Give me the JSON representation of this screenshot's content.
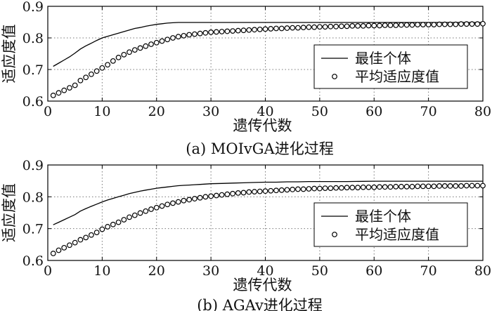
{
  "chart_data": [
    {
      "type": "line",
      "caption": "(a) MOIvGA进化过程",
      "xlabel": "遗传代数",
      "ylabel": "适应度值",
      "xlim": [
        0,
        80
      ],
      "ylim": [
        0.6,
        0.9
      ],
      "xticks": [
        0,
        10,
        20,
        30,
        40,
        50,
        60,
        70,
        80
      ],
      "yticks": [
        "0.6",
        "0.7",
        "0.8",
        "0.9"
      ],
      "grid": "dotted",
      "legend": "lower-right",
      "series": [
        {
          "name": "最佳个体",
          "style": "solid-line",
          "points": [
            [
              1,
              0.71
            ],
            [
              2,
              0.72
            ],
            [
              3,
              0.73
            ],
            [
              4,
              0.74
            ],
            [
              5,
              0.752
            ],
            [
              6,
              0.765
            ],
            [
              7,
              0.775
            ],
            [
              8,
              0.783
            ],
            [
              9,
              0.792
            ],
            [
              10,
              0.8
            ],
            [
              11,
              0.805
            ],
            [
              12,
              0.81
            ],
            [
              13,
              0.815
            ],
            [
              14,
              0.82
            ],
            [
              15,
              0.825
            ],
            [
              16,
              0.83
            ],
            [
              17,
              0.833
            ],
            [
              18,
              0.837
            ],
            [
              19,
              0.84
            ],
            [
              20,
              0.843
            ],
            [
              21,
              0.845
            ],
            [
              22,
              0.847
            ],
            [
              23,
              0.848
            ],
            [
              24,
              0.849
            ],
            [
              26,
              0.849
            ],
            [
              30,
              0.849
            ],
            [
              40,
              0.849
            ],
            [
              50,
              0.849
            ],
            [
              60,
              0.849
            ],
            [
              70,
              0.849
            ],
            [
              80,
              0.849
            ]
          ]
        },
        {
          "name": "平均适应度值",
          "style": "open-circles",
          "points": [
            [
              1,
              0.618
            ],
            [
              2,
              0.626
            ],
            [
              3,
              0.634
            ],
            [
              4,
              0.642
            ],
            [
              5,
              0.65
            ],
            [
              6,
              0.665
            ],
            [
              7,
              0.675
            ],
            [
              8,
              0.685
            ],
            [
              9,
              0.695
            ],
            [
              10,
              0.705
            ],
            [
              11,
              0.715
            ],
            [
              12,
              0.727
            ],
            [
              13,
              0.738
            ],
            [
              14,
              0.747
            ],
            [
              15,
              0.755
            ],
            [
              16,
              0.762
            ],
            [
              17,
              0.768
            ],
            [
              18,
              0.774
            ],
            [
              19,
              0.78
            ],
            [
              20,
              0.785
            ],
            [
              21,
              0.79
            ],
            [
              22,
              0.795
            ],
            [
              23,
              0.8
            ],
            [
              24,
              0.804
            ],
            [
              25,
              0.807
            ],
            [
              26,
              0.81
            ],
            [
              27,
              0.812
            ],
            [
              28,
              0.814
            ],
            [
              29,
              0.816
            ],
            [
              30,
              0.818
            ],
            [
              31,
              0.819
            ],
            [
              32,
              0.82
            ],
            [
              33,
              0.821
            ],
            [
              34,
              0.822
            ],
            [
              35,
              0.823
            ],
            [
              36,
              0.824
            ],
            [
              37,
              0.825
            ],
            [
              38,
              0.826
            ],
            [
              39,
              0.827
            ],
            [
              40,
              0.828
            ],
            [
              41,
              0.829
            ],
            [
              42,
              0.83
            ],
            [
              43,
              0.83
            ],
            [
              44,
              0.831
            ],
            [
              45,
              0.832
            ],
            [
              46,
              0.832
            ],
            [
              47,
              0.833
            ],
            [
              48,
              0.834
            ],
            [
              49,
              0.834
            ],
            [
              50,
              0.835
            ],
            [
              51,
              0.835
            ],
            [
              52,
              0.836
            ],
            [
              53,
              0.836
            ],
            [
              54,
              0.837
            ],
            [
              55,
              0.837
            ],
            [
              56,
              0.838
            ],
            [
              57,
              0.838
            ],
            [
              58,
              0.838
            ],
            [
              59,
              0.839
            ],
            [
              60,
              0.839
            ],
            [
              61,
              0.839
            ],
            [
              62,
              0.84
            ],
            [
              63,
              0.84
            ],
            [
              64,
              0.84
            ],
            [
              65,
              0.841
            ],
            [
              66,
              0.841
            ],
            [
              67,
              0.841
            ],
            [
              68,
              0.842
            ],
            [
              69,
              0.842
            ],
            [
              70,
              0.842
            ],
            [
              71,
              0.842
            ],
            [
              72,
              0.843
            ],
            [
              73,
              0.843
            ],
            [
              74,
              0.843
            ],
            [
              75,
              0.843
            ],
            [
              76,
              0.844
            ],
            [
              77,
              0.844
            ],
            [
              78,
              0.844
            ],
            [
              79,
              0.844
            ],
            [
              80,
              0.845
            ]
          ]
        }
      ]
    },
    {
      "type": "line",
      "caption": "(b) AGAv进化过程",
      "xlabel": "遗传代数",
      "ylabel": "适应度值",
      "xlim": [
        0,
        80
      ],
      "ylim": [
        0.6,
        0.9
      ],
      "xticks": [
        0,
        10,
        20,
        30,
        40,
        50,
        60,
        70,
        80
      ],
      "yticks": [
        "0.6",
        "0.7",
        "0.8",
        "0.9"
      ],
      "grid": "dotted",
      "legend": "lower-right",
      "series": [
        {
          "name": "最佳个体",
          "style": "solid-line",
          "points": [
            [
              1,
              0.712
            ],
            [
              2,
              0.72
            ],
            [
              3,
              0.728
            ],
            [
              4,
              0.736
            ],
            [
              5,
              0.744
            ],
            [
              6,
              0.755
            ],
            [
              7,
              0.763
            ],
            [
              8,
              0.77
            ],
            [
              9,
              0.777
            ],
            [
              10,
              0.784
            ],
            [
              11,
              0.79
            ],
            [
              12,
              0.795
            ],
            [
              13,
              0.8
            ],
            [
              14,
              0.805
            ],
            [
              15,
              0.81
            ],
            [
              16,
              0.814
            ],
            [
              17,
              0.818
            ],
            [
              18,
              0.821
            ],
            [
              19,
              0.824
            ],
            [
              20,
              0.827
            ],
            [
              21,
              0.829
            ],
            [
              22,
              0.831
            ],
            [
              23,
              0.833
            ],
            [
              24,
              0.835
            ],
            [
              25,
              0.836
            ],
            [
              26,
              0.837
            ],
            [
              27,
              0.838
            ],
            [
              28,
              0.839
            ],
            [
              29,
              0.84
            ],
            [
              30,
              0.841
            ],
            [
              32,
              0.842
            ],
            [
              34,
              0.843
            ],
            [
              36,
              0.844
            ],
            [
              38,
              0.845
            ],
            [
              40,
              0.846
            ],
            [
              42,
              0.846
            ],
            [
              44,
              0.847
            ],
            [
              46,
              0.847
            ],
            [
              48,
              0.848
            ],
            [
              50,
              0.848
            ],
            [
              55,
              0.848
            ],
            [
              60,
              0.849
            ],
            [
              70,
              0.849
            ],
            [
              80,
              0.849
            ]
          ]
        },
        {
          "name": "平均适应度值",
          "style": "open-circles",
          "points": [
            [
              1,
              0.622
            ],
            [
              2,
              0.632
            ],
            [
              3,
              0.64
            ],
            [
              4,
              0.648
            ],
            [
              5,
              0.656
            ],
            [
              6,
              0.665
            ],
            [
              7,
              0.672
            ],
            [
              8,
              0.68
            ],
            [
              9,
              0.688
            ],
            [
              10,
              0.698
            ],
            [
              11,
              0.706
            ],
            [
              12,
              0.713
            ],
            [
              13,
              0.72
            ],
            [
              14,
              0.728
            ],
            [
              15,
              0.736
            ],
            [
              16,
              0.742
            ],
            [
              17,
              0.749
            ],
            [
              18,
              0.755
            ],
            [
              19,
              0.761
            ],
            [
              20,
              0.766
            ],
            [
              21,
              0.771
            ],
            [
              22,
              0.776
            ],
            [
              23,
              0.78
            ],
            [
              24,
              0.784
            ],
            [
              25,
              0.788
            ],
            [
              26,
              0.791
            ],
            [
              27,
              0.794
            ],
            [
              28,
              0.797
            ],
            [
              29,
              0.8
            ],
            [
              30,
              0.802
            ],
            [
              31,
              0.804
            ],
            [
              32,
              0.806
            ],
            [
              33,
              0.808
            ],
            [
              34,
              0.81
            ],
            [
              35,
              0.812
            ],
            [
              36,
              0.813
            ],
            [
              37,
              0.815
            ],
            [
              38,
              0.816
            ],
            [
              39,
              0.817
            ],
            [
              40,
              0.818
            ],
            [
              41,
              0.819
            ],
            [
              42,
              0.82
            ],
            [
              43,
              0.821
            ],
            [
              44,
              0.822
            ],
            [
              45,
              0.823
            ],
            [
              46,
              0.824
            ],
            [
              47,
              0.824
            ],
            [
              48,
              0.825
            ],
            [
              49,
              0.826
            ],
            [
              50,
              0.826
            ],
            [
              51,
              0.827
            ],
            [
              52,
              0.827
            ],
            [
              53,
              0.828
            ],
            [
              54,
              0.828
            ],
            [
              55,
              0.829
            ],
            [
              56,
              0.829
            ],
            [
              57,
              0.829
            ],
            [
              58,
              0.83
            ],
            [
              59,
              0.83
            ],
            [
              60,
              0.83
            ],
            [
              61,
              0.831
            ],
            [
              62,
              0.831
            ],
            [
              63,
              0.831
            ],
            [
              64,
              0.832
            ],
            [
              65,
              0.832
            ],
            [
              66,
              0.832
            ],
            [
              67,
              0.832
            ],
            [
              68,
              0.833
            ],
            [
              69,
              0.833
            ],
            [
              70,
              0.833
            ],
            [
              71,
              0.833
            ],
            [
              72,
              0.834
            ],
            [
              73,
              0.834
            ],
            [
              74,
              0.834
            ],
            [
              75,
              0.834
            ],
            [
              76,
              0.834
            ],
            [
              77,
              0.835
            ],
            [
              78,
              0.835
            ],
            [
              79,
              0.835
            ],
            [
              80,
              0.835
            ]
          ]
        }
      ]
    }
  ]
}
